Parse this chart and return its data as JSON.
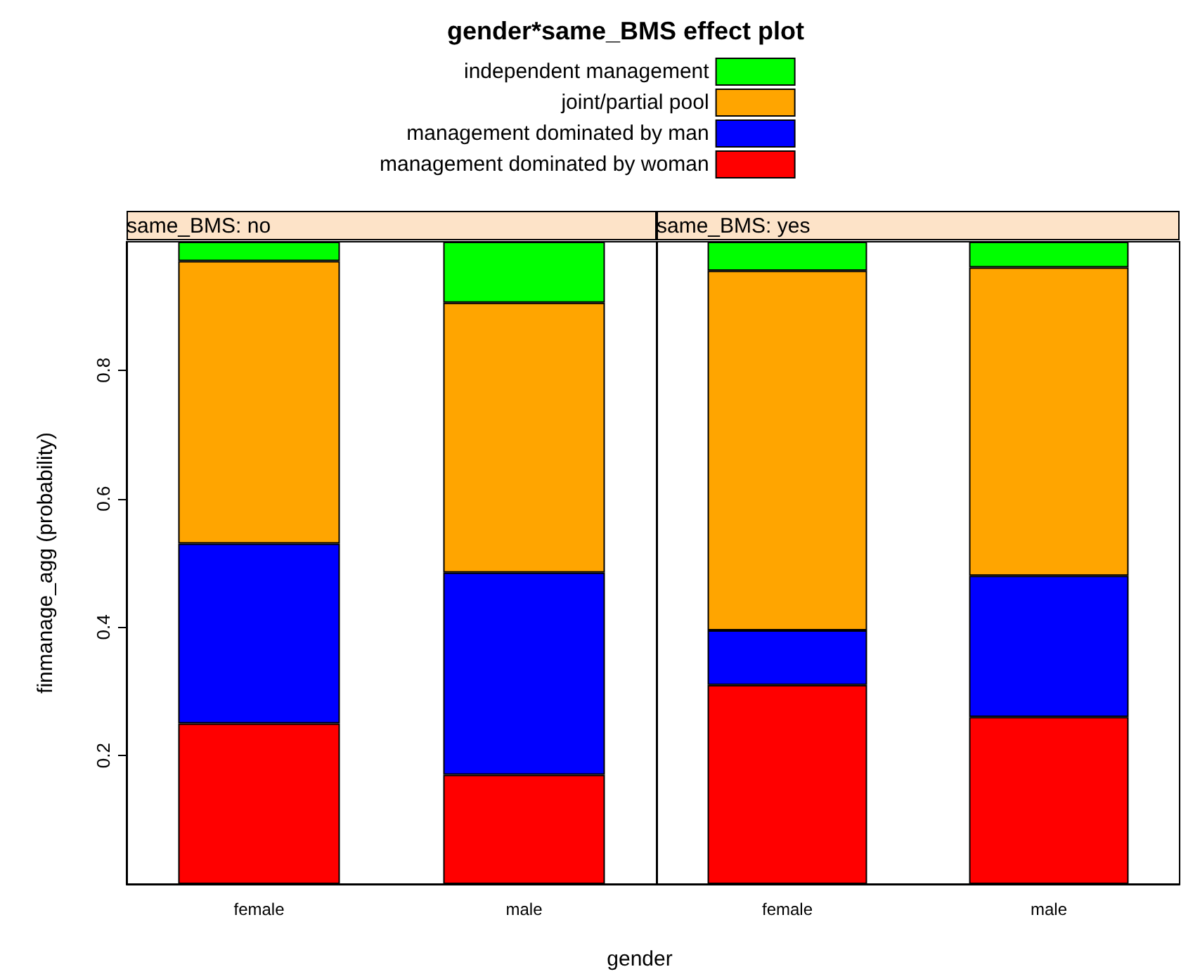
{
  "chart_data": [
    {
      "type": "bar",
      "title": "gender*same_BMS effect plot",
      "subtitle": "same_BMS: no",
      "xlabel": "gender",
      "ylabel": "finmanage_agg (probability)",
      "categories": [
        "female",
        "male"
      ],
      "stacked": true,
      "legend": "top",
      "grid": false,
      "ylim": [
        0,
        1
      ],
      "yticks": [
        0.2,
        0.4,
        0.6,
        0.8
      ],
      "series": [
        {
          "name": "management dominated by woman",
          "color": "#ff0000",
          "values": [
            0.25,
            0.17
          ]
        },
        {
          "name": "management dominated by man",
          "color": "#0000ff",
          "values": [
            0.28,
            0.315
          ]
        },
        {
          "name": "joint/partial pool",
          "color": "#ffa500",
          "values": [
            0.44,
            0.42
          ]
        },
        {
          "name": "independent management",
          "color": "#00ff00",
          "values": [
            0.03,
            0.095
          ]
        }
      ]
    },
    {
      "type": "bar",
      "subtitle": "same_BMS: yes",
      "categories": [
        "female",
        "male"
      ],
      "stacked": true,
      "grid": false,
      "ylim": [
        0,
        1
      ],
      "yticks": [
        0.2,
        0.4,
        0.6,
        0.8
      ],
      "tick_labels": "x",
      "series": [
        {
          "color": "#ff0000",
          "values": [
            0.31,
            0.26
          ]
        },
        {
          "color": "#0000ff",
          "values": [
            0.085,
            0.22
          ]
        },
        {
          "color": "#ffa500",
          "values": [
            0.56,
            0.48
          ]
        },
        {
          "color": "#00ff00",
          "values": [
            0.045,
            0.04
          ]
        }
      ]
    }
  ]
}
